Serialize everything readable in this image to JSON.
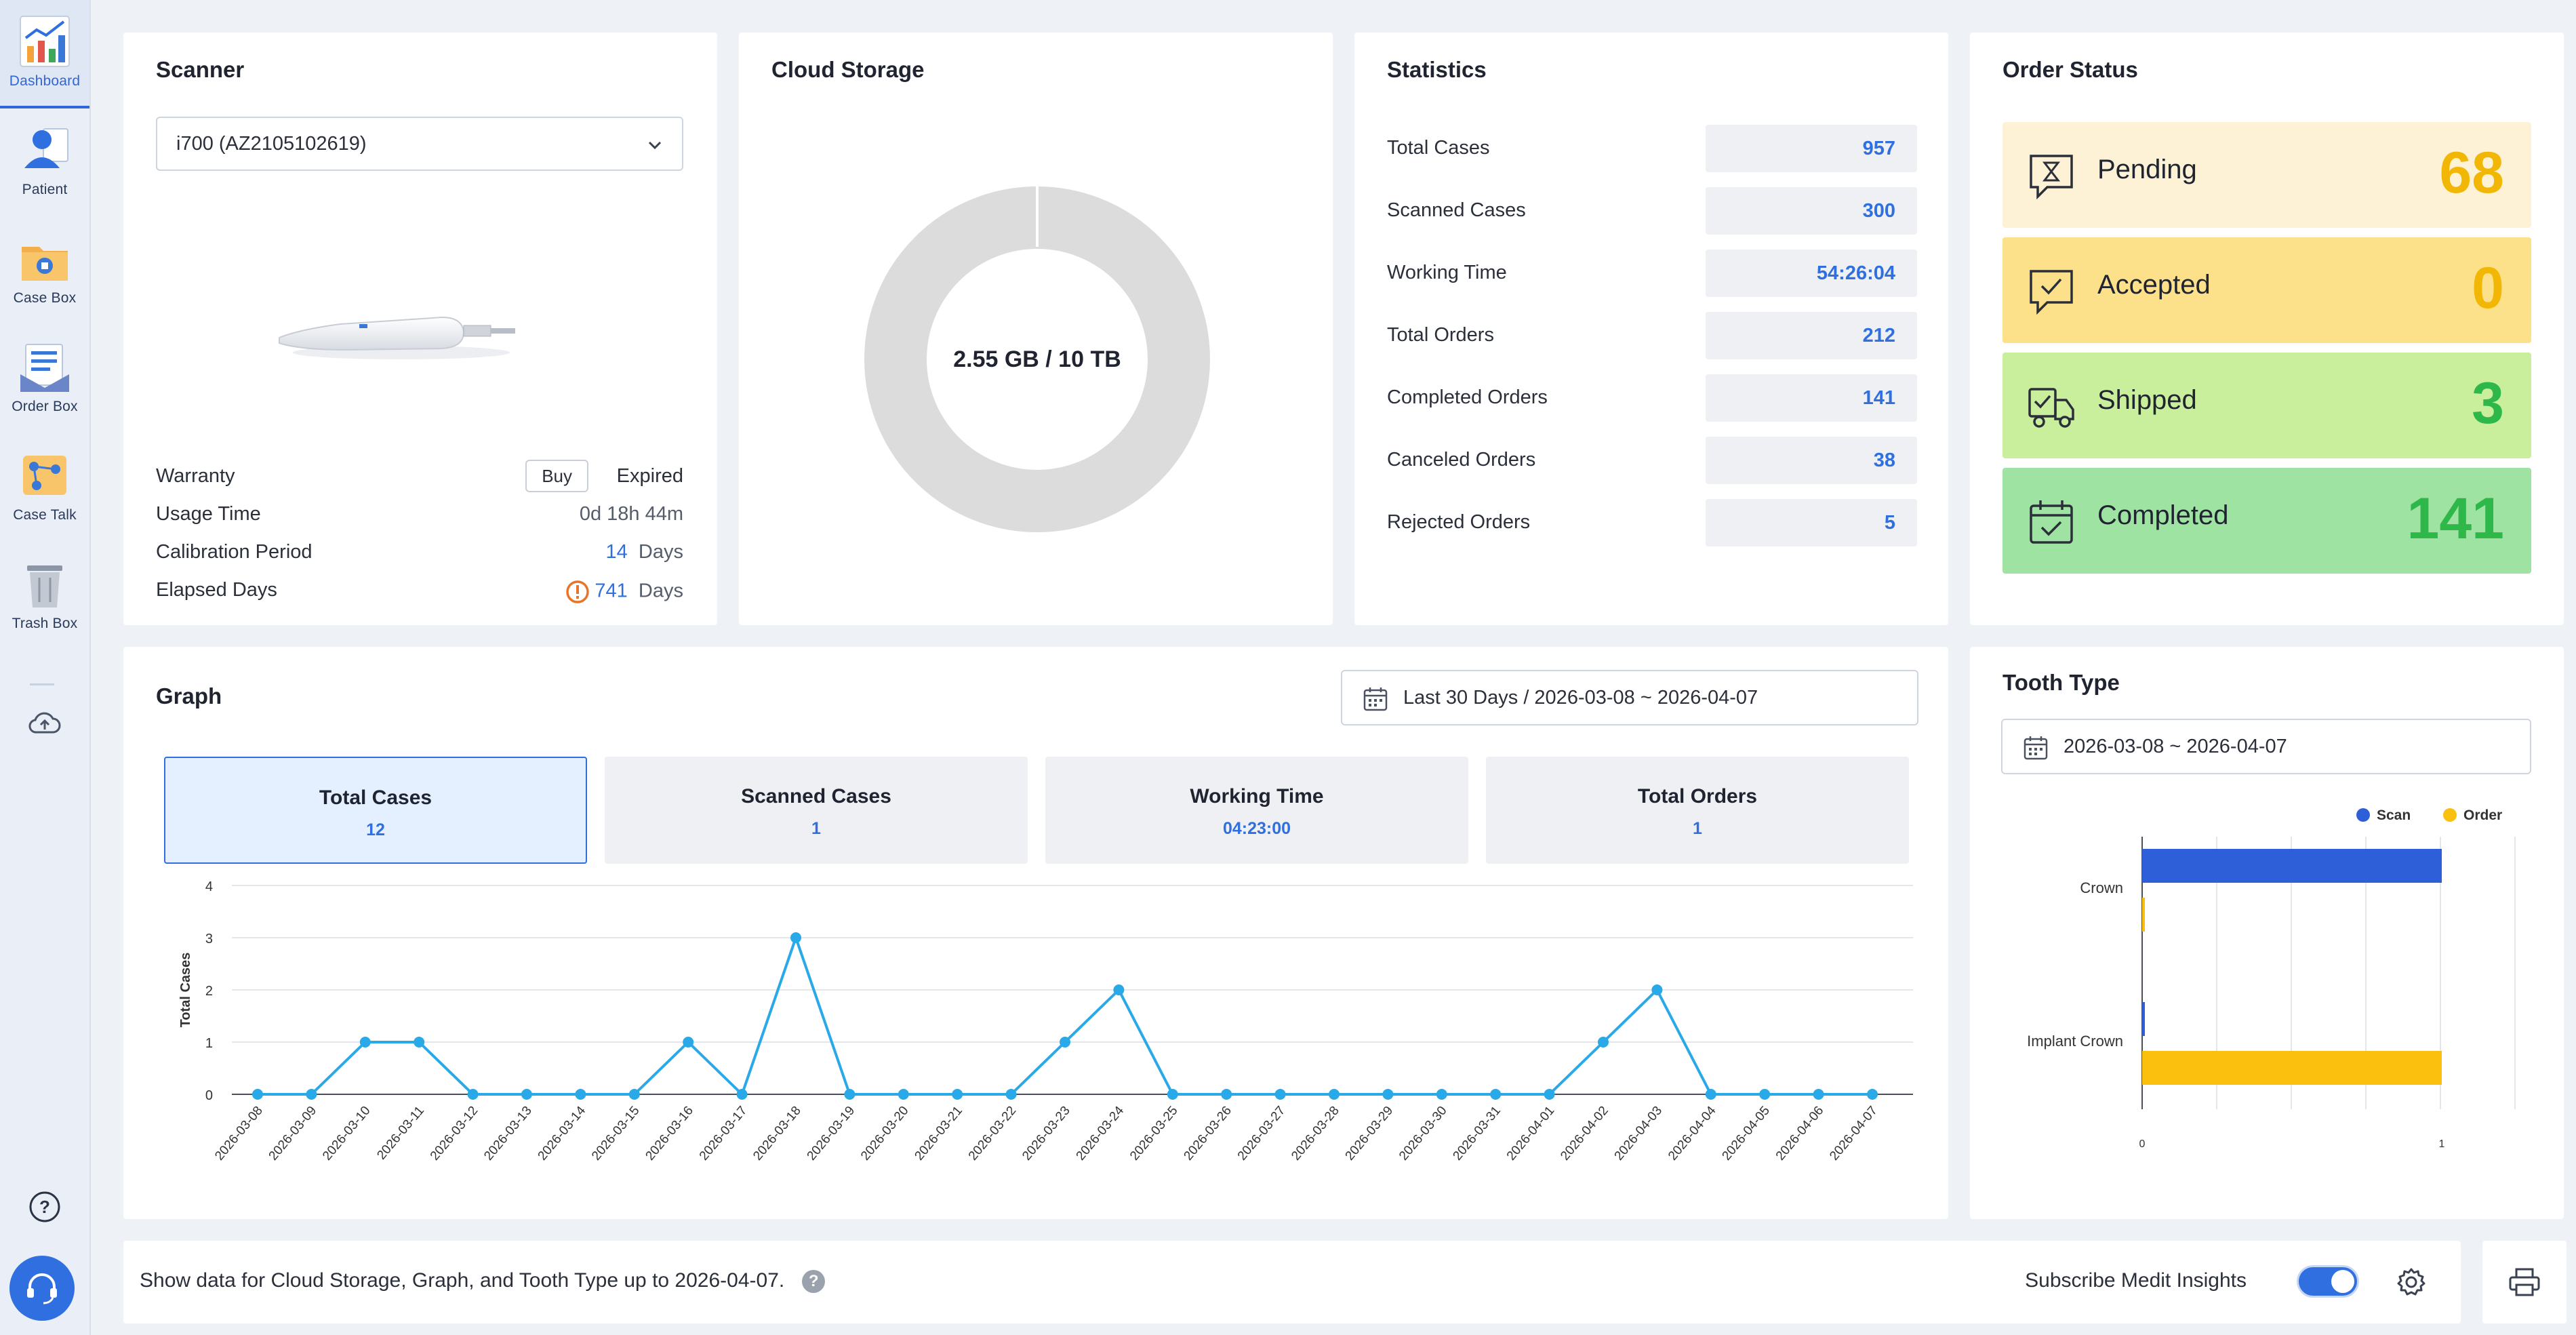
{
  "sidebar": {
    "items": [
      {
        "label": "Dashboard",
        "icon": "dashboard-chart-icon",
        "active": true
      },
      {
        "label": "Patient",
        "icon": "patient-icon"
      },
      {
        "label": "Case Box",
        "icon": "case-box-icon"
      },
      {
        "label": "Order Box",
        "icon": "order-box-icon"
      },
      {
        "label": "Case Talk",
        "icon": "case-talk-icon"
      },
      {
        "label": "Trash Box",
        "icon": "trash-box-icon"
      }
    ],
    "cloud_icon": "cloud-upload-icon",
    "help_icon": "help-icon",
    "support_icon": "headset-icon"
  },
  "scanner": {
    "title": "Scanner",
    "selected": "i700 (AZ2105102619)",
    "warranty_label": "Warranty",
    "buy_label": "Buy",
    "warranty_value": "Expired",
    "usage_label": "Usage Time",
    "usage_value": "0d 18h 44m",
    "calibration_label": "Calibration Period",
    "calibration_num": "14",
    "calibration_unit": "Days",
    "elapsed_label": "Elapsed Days",
    "elapsed_num": "741",
    "elapsed_unit": "Days"
  },
  "cloud": {
    "title": "Cloud Storage",
    "usage_text": "2.55 GB / 10 TB",
    "used_fraction": 0.0003
  },
  "statistics": {
    "title": "Statistics",
    "rows": [
      {
        "label": "Total Cases",
        "value": "957"
      },
      {
        "label": "Scanned Cases",
        "value": "300"
      },
      {
        "label": "Working Time",
        "value": "54:26:04"
      },
      {
        "label": "Total Orders",
        "value": "212"
      },
      {
        "label": "Completed Orders",
        "value": "141"
      },
      {
        "label": "Canceled Orders",
        "value": "38"
      },
      {
        "label": "Rejected Orders",
        "value": "5"
      }
    ]
  },
  "order_status": {
    "title": "Order Status",
    "tiles": [
      {
        "label": "Pending",
        "value": "68",
        "bg": "#fdf2d6",
        "color": "#f2b705",
        "icon": "hourglass-chat-icon"
      },
      {
        "label": "Accepted",
        "value": "0",
        "bg": "#fde08a",
        "color": "#f2b705",
        "icon": "check-chat-icon"
      },
      {
        "label": "Shipped",
        "value": "3",
        "bg": "#c9ef9c",
        "color": "#2fb84a",
        "icon": "delivery-truck-icon"
      },
      {
        "label": "Completed",
        "value": "141",
        "bg": "#9fe3a3",
        "color": "#2fb84a",
        "icon": "calendar-check-icon"
      }
    ]
  },
  "graph": {
    "title": "Graph",
    "date_range": "Last 30 Days / 2026-03-08 ~ 2026-04-07",
    "tabs": [
      {
        "label": "Total Cases",
        "value": "12",
        "active": true
      },
      {
        "label": "Scanned Cases",
        "value": "1"
      },
      {
        "label": "Working Time",
        "value": "04:23:00"
      },
      {
        "label": "Total Orders",
        "value": "1"
      }
    ]
  },
  "tooth_type": {
    "title": "Tooth Type",
    "date_range": "2026-03-08 ~ 2026-04-07"
  },
  "footer": {
    "note": "Show data for Cloud Storage, Graph, and Tooth Type up to 2026-04-07.",
    "help_glyph": "?",
    "subscribe_label": "Subscribe Medit Insights",
    "subscribed": true
  },
  "chart_data": [
    {
      "type": "line",
      "ylabel": "Total Cases",
      "ylim": [
        0,
        4
      ],
      "yticks": [
        0,
        1,
        2,
        3,
        4
      ],
      "color": "#29a9e8",
      "x": [
        "2026-03-08",
        "2026-03-09",
        "2026-03-10",
        "2026-03-11",
        "2026-03-12",
        "2026-03-13",
        "2026-03-14",
        "2026-03-15",
        "2026-03-16",
        "2026-03-17",
        "2026-03-18",
        "2026-03-19",
        "2026-03-20",
        "2026-03-21",
        "2026-03-22",
        "2026-03-23",
        "2026-03-24",
        "2026-03-25",
        "2026-03-26",
        "2026-03-27",
        "2026-03-28",
        "2026-03-29",
        "2026-03-30",
        "2026-03-31",
        "2026-04-01",
        "2026-04-02",
        "2026-04-03",
        "2026-04-04",
        "2026-04-05",
        "2026-04-06",
        "2026-04-07"
      ],
      "values": [
        0,
        0,
        1,
        1,
        0,
        0,
        0,
        0,
        1,
        0,
        3,
        0,
        0,
        0,
        0,
        1,
        2,
        0,
        0,
        0,
        0,
        0,
        0,
        0,
        0,
        1,
        2,
        0,
        0,
        0,
        0
      ],
      "grid": true
    },
    {
      "type": "bar",
      "orientation": "horizontal",
      "categories": [
        "Crown",
        "Implant Crown"
      ],
      "series": [
        {
          "name": "Scan",
          "values": [
            1,
            0
          ],
          "color": "#2f5fd8"
        },
        {
          "name": "Order",
          "values": [
            0,
            1
          ],
          "color": "#fbbf0e"
        }
      ],
      "xlim": [
        0,
        1
      ],
      "xticks": [
        "0",
        "1"
      ],
      "legend": "top-right",
      "grid": true
    }
  ]
}
